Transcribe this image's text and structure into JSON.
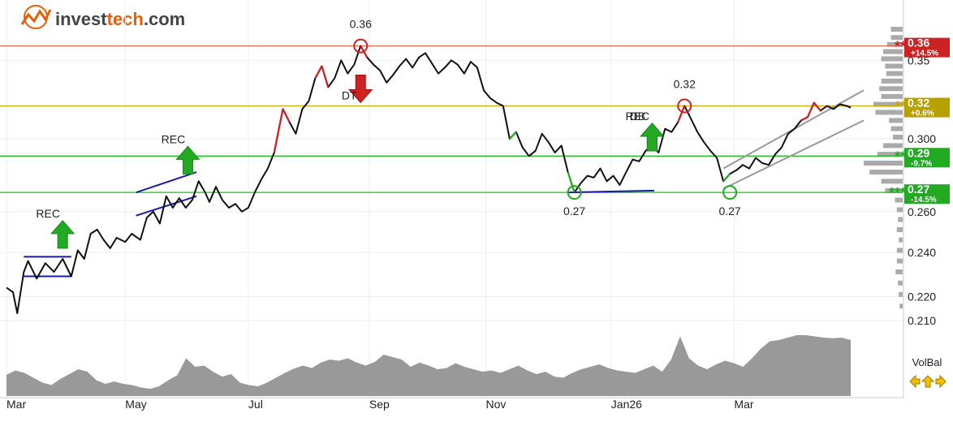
{
  "brand": {
    "name_part1": "invest",
    "name_part2": "tech",
    "name_suffix": ".com",
    "color_gray": "#444444",
    "color_orange": "#e3600a"
  },
  "volbal_label": "VolBal",
  "chart_data": {
    "type": "line",
    "title": "",
    "x_ticks": [
      "Mar",
      "May",
      "Jul",
      "Sep",
      "Nov",
      "Jan26",
      "Mar"
    ],
    "y_ticks": [
      "0.35",
      "0.300",
      "0.260",
      "0.240",
      "0.220",
      "0.210"
    ],
    "y_tick_values": [
      0.35,
      0.3,
      0.26,
      0.24,
      0.22,
      0.21
    ],
    "y_scale": "log",
    "ylim": [
      0.205,
      0.372
    ],
    "price_series": {
      "name": "",
      "points": [
        [
          0,
          0.224
        ],
        [
          3,
          0.222
        ],
        [
          5,
          0.213
        ],
        [
          8,
          0.231
        ],
        [
          10,
          0.236
        ],
        [
          14,
          0.228
        ],
        [
          18,
          0.235
        ],
        [
          22,
          0.231
        ],
        [
          26,
          0.237
        ],
        [
          30,
          0.229
        ],
        [
          33,
          0.241
        ],
        [
          36,
          0.237
        ],
        [
          39,
          0.249
        ],
        [
          42,
          0.251
        ],
        [
          45,
          0.246
        ],
        [
          48,
          0.242
        ],
        [
          51,
          0.247
        ],
        [
          55,
          0.245
        ],
        [
          58,
          0.249
        ],
        [
          62,
          0.246
        ],
        [
          65,
          0.257
        ],
        [
          68,
          0.26
        ],
        [
          71,
          0.254
        ],
        [
          74,
          0.268
        ],
        [
          77,
          0.262
        ],
        [
          80,
          0.267
        ],
        [
          83,
          0.262
        ],
        [
          86,
          0.266
        ],
        [
          89,
          0.276
        ],
        [
          92,
          0.27
        ],
        [
          94,
          0.265
        ],
        [
          97,
          0.273
        ],
        [
          100,
          0.266
        ],
        [
          103,
          0.262
        ],
        [
          106,
          0.264
        ],
        [
          109,
          0.26
        ],
        [
          112,
          0.262
        ],
        [
          115,
          0.27
        ],
        [
          118,
          0.277
        ],
        [
          121,
          0.283
        ],
        [
          124,
          0.292
        ],
        [
          126,
          0.305
        ],
        [
          128,
          0.318
        ],
        [
          131,
          0.31
        ],
        [
          134,
          0.303
        ],
        [
          137,
          0.318
        ],
        [
          140,
          0.323
        ],
        [
          143,
          0.338
        ],
        [
          146,
          0.346
        ],
        [
          149,
          0.332
        ],
        [
          152,
          0.338
        ],
        [
          155,
          0.35
        ],
        [
          158,
          0.341
        ],
        [
          161,
          0.347
        ],
        [
          164,
          0.36
        ],
        [
          167,
          0.352
        ],
        [
          170,
          0.347
        ],
        [
          173,
          0.343
        ],
        [
          176,
          0.335
        ],
        [
          179,
          0.34
        ],
        [
          182,
          0.346
        ],
        [
          185,
          0.351
        ],
        [
          188,
          0.345
        ],
        [
          191,
          0.352
        ],
        [
          194,
          0.355
        ],
        [
          197,
          0.348
        ],
        [
          200,
          0.341
        ],
        [
          203,
          0.345
        ],
        [
          206,
          0.35
        ],
        [
          209,
          0.347
        ],
        [
          212,
          0.341
        ],
        [
          215,
          0.349
        ],
        [
          218,
          0.345
        ],
        [
          221,
          0.33
        ],
        [
          224,
          0.325
        ],
        [
          227,
          0.322
        ],
        [
          230,
          0.32
        ],
        [
          233,
          0.3
        ],
        [
          236,
          0.304
        ],
        [
          239,
          0.295
        ],
        [
          242,
          0.29
        ],
        [
          245,
          0.293
        ],
        [
          248,
          0.303
        ],
        [
          251,
          0.298
        ],
        [
          254,
          0.292
        ],
        [
          257,
          0.296
        ],
        [
          260,
          0.281
        ],
        [
          263,
          0.27
        ],
        [
          266,
          0.275
        ],
        [
          269,
          0.279
        ],
        [
          272,
          0.278
        ],
        [
          275,
          0.283
        ],
        [
          278,
          0.276
        ],
        [
          281,
          0.279
        ],
        [
          284,
          0.274
        ],
        [
          287,
          0.281
        ],
        [
          290,
          0.288
        ],
        [
          293,
          0.287
        ],
        [
          296,
          0.293
        ],
        [
          299,
          0.296
        ],
        [
          302,
          0.292
        ],
        [
          305,
          0.306
        ],
        [
          308,
          0.304
        ],
        [
          311,
          0.31
        ],
        [
          314,
          0.32
        ],
        [
          317,
          0.312
        ],
        [
          320,
          0.304
        ],
        [
          323,
          0.298
        ],
        [
          326,
          0.293
        ],
        [
          329,
          0.289
        ],
        [
          332,
          0.276
        ],
        [
          335,
          0.28
        ],
        [
          338,
          0.282
        ],
        [
          341,
          0.285
        ],
        [
          344,
          0.283
        ],
        [
          347,
          0.289
        ],
        [
          350,
          0.286
        ],
        [
          353,
          0.285
        ],
        [
          356,
          0.291
        ],
        [
          359,
          0.295
        ],
        [
          362,
          0.303
        ],
        [
          365,
          0.306
        ],
        [
          368,
          0.311
        ],
        [
          371,
          0.313
        ],
        [
          374,
          0.322
        ],
        [
          377,
          0.317
        ],
        [
          380,
          0.32
        ],
        [
          383,
          0.318
        ],
        [
          386,
          0.321
        ],
        [
          389,
          0.32
        ],
        [
          391,
          0.319
        ]
      ]
    },
    "red_segments": [
      [
        124,
        131
      ],
      [
        143,
        149
      ],
      [
        164,
        167
      ],
      [
        311,
        314
      ],
      [
        368,
        378
      ]
    ],
    "green_segments": [
      [
        233,
        236
      ],
      [
        260,
        263
      ],
      [
        332,
        335
      ]
    ],
    "horizontal_levels": [
      {
        "value": 0.36,
        "color": "#e07060",
        "label": "0.36",
        "sublabel": "+14.5%",
        "stars": "**",
        "badge_color": "#cc2222",
        "star_color": "#cc2222"
      },
      {
        "value": 0.32,
        "color": "#c8a800",
        "label": "0.32",
        "sublabel": "+0.6%",
        "stars": "**",
        "badge_color": "#b8a000",
        "star_color": "#c8a800"
      },
      {
        "value": 0.29,
        "color": "#22bb22",
        "label": "0.29",
        "sublabel": "-9.7%",
        "stars": "**",
        "badge_color": "#22aa22",
        "star_color": "#22aa22"
      },
      {
        "value": 0.27,
        "color": "#22bb22",
        "label": "0.27",
        "sublabel": "-14.5%",
        "stars": "***",
        "badge_color": "#22aa22",
        "star_color": "#22aa22"
      }
    ],
    "point_labels": [
      {
        "x": 164,
        "y": 0.36,
        "text": "0.36",
        "position": "above"
      },
      {
        "x": 314,
        "y": 0.32,
        "text": "0.32",
        "position": "above"
      },
      {
        "x": 263,
        "y": 0.27,
        "text": "0.27",
        "position": "below"
      },
      {
        "x": 335,
        "y": 0.27,
        "text": "0.27",
        "position": "below"
      }
    ],
    "signals": [
      {
        "type": "buy",
        "x": 26,
        "y": 0.242,
        "label": "REC"
      },
      {
        "type": "buy",
        "x": 84,
        "y": 0.28,
        "label": "REC"
      },
      {
        "type": "sell",
        "x": 164,
        "y": 0.34,
        "label": "DT"
      },
      {
        "type": "buy",
        "x": 299,
        "y": 0.293,
        "label": "REC"
      },
      {
        "type": "buy",
        "x": 299,
        "y": 0.293,
        "label": "DB"
      }
    ],
    "pattern_lines": [
      {
        "color": "#1a1aaa",
        "from": [
          8,
          0.238
        ],
        "to": [
          30,
          0.238
        ]
      },
      {
        "color": "#1a1aaa",
        "from": [
          8,
          0.229
        ],
        "to": [
          30,
          0.229
        ]
      },
      {
        "color": "#1a1aaa",
        "from": [
          60,
          0.27
        ],
        "to": [
          88,
          0.281
        ]
      },
      {
        "color": "#1a1aaa",
        "from": [
          60,
          0.258
        ],
        "to": [
          88,
          0.268
        ]
      },
      {
        "color": "#1a1aaa",
        "from": [
          260,
          0.27
        ],
        "to": [
          300,
          0.271
        ]
      },
      {
        "color": "#999999",
        "from": [
          332,
          0.283
        ],
        "to": [
          397,
          0.33
        ]
      },
      {
        "color": "#999999",
        "from": [
          332,
          0.272
        ],
        "to": [
          397,
          0.311
        ]
      }
    ],
    "volume_profile": {
      "color": "#aaaaaa",
      "bins": [
        [
          0.372,
          0.3
        ],
        [
          0.366,
          0.3
        ],
        [
          0.361,
          0.4
        ],
        [
          0.356,
          0.5
        ],
        [
          0.351,
          0.55
        ],
        [
          0.346,
          0.45
        ],
        [
          0.341,
          0.42
        ],
        [
          0.336,
          0.55
        ],
        [
          0.331,
          0.6
        ],
        [
          0.326,
          0.55
        ],
        [
          0.321,
          0.75
        ],
        [
          0.316,
          0.7
        ],
        [
          0.311,
          0.35
        ],
        [
          0.306,
          0.3
        ],
        [
          0.301,
          0.25
        ],
        [
          0.296,
          0.5
        ],
        [
          0.291,
          0.65
        ],
        [
          0.286,
          1.0
        ],
        [
          0.281,
          0.85
        ],
        [
          0.276,
          0.55
        ],
        [
          0.271,
          0.45
        ],
        [
          0.266,
          0.2
        ],
        [
          0.261,
          0.15
        ],
        [
          0.256,
          0.12
        ],
        [
          0.251,
          0.15
        ],
        [
          0.246,
          0.1
        ],
        [
          0.241,
          0.15
        ],
        [
          0.236,
          0.15
        ],
        [
          0.231,
          0.18
        ],
        [
          0.226,
          0.12
        ],
        [
          0.221,
          0.1
        ],
        [
          0.216,
          0.08
        ]
      ]
    },
    "volume_area": {
      "color": "#999999",
      "values": [
        0.35,
        0.42,
        0.38,
        0.3,
        0.22,
        0.18,
        0.28,
        0.36,
        0.44,
        0.4,
        0.26,
        0.2,
        0.24,
        0.2,
        0.18,
        0.14,
        0.12,
        0.16,
        0.26,
        0.34,
        0.62,
        0.48,
        0.5,
        0.4,
        0.32,
        0.36,
        0.22,
        0.18,
        0.16,
        0.22,
        0.3,
        0.38,
        0.45,
        0.5,
        0.46,
        0.55,
        0.6,
        0.58,
        0.62,
        0.55,
        0.5,
        0.56,
        0.68,
        0.64,
        0.6,
        0.48,
        0.55,
        0.5,
        0.44,
        0.46,
        0.54,
        0.48,
        0.44,
        0.4,
        0.42,
        0.38,
        0.44,
        0.5,
        0.42,
        0.36,
        0.4,
        0.32,
        0.3,
        0.38,
        0.44,
        0.48,
        0.52,
        0.46,
        0.42,
        0.4,
        0.38,
        0.44,
        0.5,
        0.4,
        0.6,
        0.98,
        0.62,
        0.5,
        0.44,
        0.52,
        0.58,
        0.54,
        0.48,
        0.62,
        0.78,
        0.9,
        0.92,
        0.96,
        1.0,
        1.0,
        0.98,
        0.96,
        0.95,
        0.96,
        0.92
      ]
    },
    "volbal_arrows": [
      {
        "color": "#f0c000",
        "direction": "left"
      },
      {
        "color": "#f0c000",
        "direction": "up"
      },
      {
        "color": "#f0c000",
        "direction": "right"
      }
    ]
  }
}
